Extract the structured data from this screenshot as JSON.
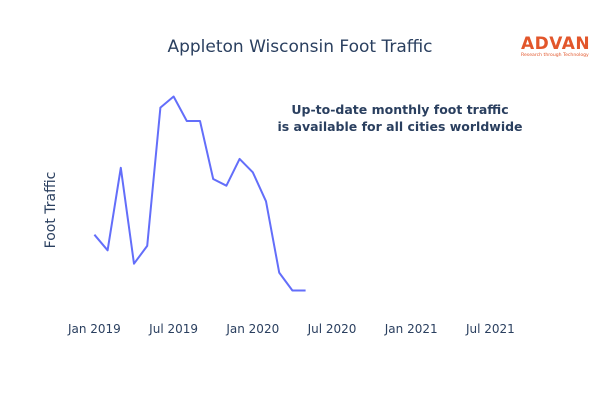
{
  "logo": {
    "word": "ADVAN",
    "tagline": "Research through Technology",
    "color": "#e2562b"
  },
  "chart_data": {
    "type": "line",
    "title": "Appleton Wisconsin Foot Traffic",
    "xlabel": "",
    "ylabel": "Foot Traffic",
    "annotation": [
      "Up-to-date monthly foot traffic",
      "is available for all cities worldwide"
    ],
    "x_tick_labels": [
      "Jan 2019",
      "Jul 2019",
      "Jan 2020",
      "Jul 2020",
      "Jan 2021",
      "Jul 2021"
    ],
    "x_ticks": [
      "2019-01",
      "2019-07",
      "2020-01",
      "2020-07",
      "2021-01",
      "2021-07"
    ],
    "xlim": [
      "2018-11",
      "2021-10"
    ],
    "y_tick_labels_shown": false,
    "ylim": [
      0,
      1
    ],
    "grid": false,
    "legend": "none",
    "line_color": "#636efa",
    "series": [
      {
        "x": [
          "2019-01",
          "2019-02",
          "2019-03",
          "2019-04",
          "2019-05",
          "2019-06",
          "2019-07",
          "2019-08",
          "2019-09",
          "2019-10",
          "2019-11",
          "2019-12",
          "2020-01",
          "2020-02",
          "2020-03",
          "2020-04",
          "2020-05"
        ],
        "values": [
          0.36,
          0.29,
          0.66,
          0.23,
          0.31,
          0.93,
          0.98,
          0.87,
          0.87,
          0.61,
          0.58,
          0.7,
          0.64,
          0.51,
          0.19,
          0.11,
          0.11
        ]
      }
    ]
  }
}
